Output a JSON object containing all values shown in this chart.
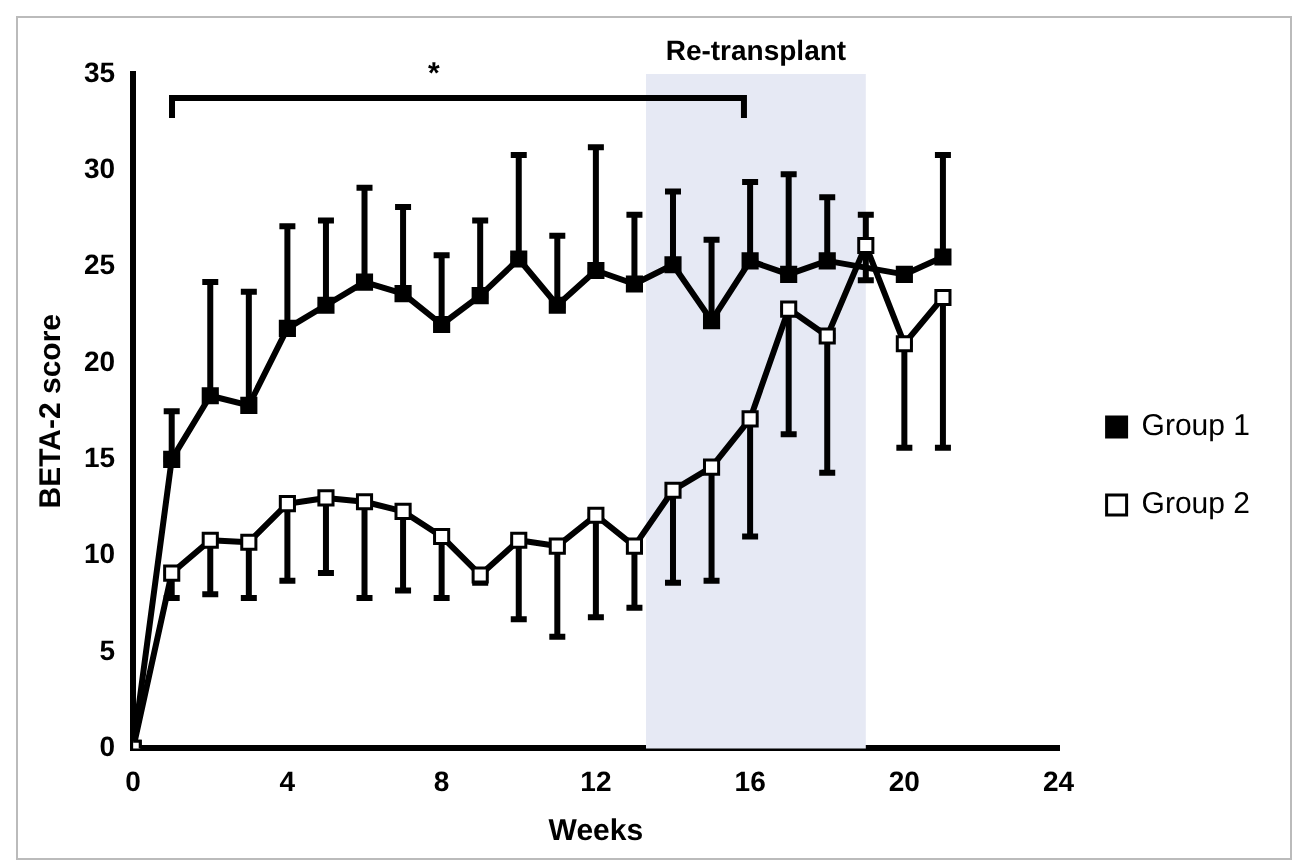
{
  "chart_data": {
    "type": "line",
    "xlabel": "Weeks",
    "ylabel": "BETA-2 score",
    "x": [
      0,
      1,
      2,
      3,
      4,
      5,
      6,
      7,
      8,
      9,
      10,
      11,
      12,
      13,
      14,
      15,
      16,
      17,
      18,
      19,
      20,
      21
    ],
    "xlim": [
      0,
      24
    ],
    "xticks": [
      0,
      4,
      8,
      12,
      16,
      20,
      24
    ],
    "ylim": [
      0,
      35
    ],
    "yticks": [
      0,
      5,
      10,
      15,
      20,
      25,
      30,
      35
    ],
    "grid": false,
    "legend": "right",
    "marker": "square",
    "line_style": "solid",
    "series": [
      {
        "name": "Group 1",
        "color": "#000000",
        "values": [
          0,
          15,
          18.3,
          17.8,
          21.8,
          23,
          24.2,
          23.6,
          22,
          23.5,
          25.4,
          23,
          24.8,
          24.1,
          25.1,
          22.2,
          25.3,
          24.6,
          25.3,
          null,
          24.6,
          25.5
        ],
        "errors": [
          null,
          [
            15,
            17.5
          ],
          [
            18.3,
            24.2
          ],
          [
            17.8,
            23.7
          ],
          [
            21.8,
            27.1
          ],
          [
            23,
            27.4
          ],
          [
            24.2,
            29.1
          ],
          [
            23.6,
            28.1
          ],
          [
            22,
            25.6
          ],
          [
            23.5,
            27.4
          ],
          [
            25.4,
            30.8
          ],
          [
            23,
            26.6
          ],
          [
            24.8,
            31.2
          ],
          [
            24.1,
            27.7
          ],
          [
            25.1,
            28.9
          ],
          [
            22.2,
            26.4
          ],
          [
            25.3,
            29.4
          ],
          [
            24.6,
            29.8
          ],
          [
            25.3,
            28.6
          ],
          null,
          null,
          [
            25.5,
            30.8
          ]
        ]
      },
      {
        "name": "Group 2",
        "color": "#000000",
        "values": [
          0,
          9.1,
          10.8,
          10.7,
          12.7,
          13,
          12.8,
          12.3,
          11,
          9,
          10.8,
          10.5,
          12.1,
          10.5,
          13.4,
          14.6,
          17.1,
          22.8,
          21.4,
          26.1,
          21,
          23.4
        ],
        "errors": [
          null,
          [
            7.8,
            9.1
          ],
          [
            8,
            10.8
          ],
          [
            7.8,
            10.7
          ],
          [
            8.7,
            12.7
          ],
          [
            9.1,
            13
          ],
          [
            7.8,
            12.8
          ],
          [
            8.2,
            12.3
          ],
          [
            7.8,
            11
          ],
          [
            8.6,
            9
          ],
          [
            6.7,
            10.8
          ],
          [
            5.8,
            10.5
          ],
          [
            6.8,
            12.1
          ],
          [
            7.3,
            10.5
          ],
          [
            8.6,
            13.4
          ],
          [
            8.7,
            14.6
          ],
          [
            11,
            17.1
          ],
          [
            16.3,
            22.8
          ],
          [
            14.3,
            21.4
          ],
          [
            24.3,
            27.7
          ],
          [
            15.6,
            21
          ],
          [
            15.6,
            23.4
          ]
        ]
      }
    ],
    "bands": [
      {
        "axis": "x",
        "from": 13.3,
        "to": 19,
        "label": "Re-transplant",
        "color": "#e6e9f4"
      }
    ],
    "annotations": [
      "*"
    ]
  }
}
